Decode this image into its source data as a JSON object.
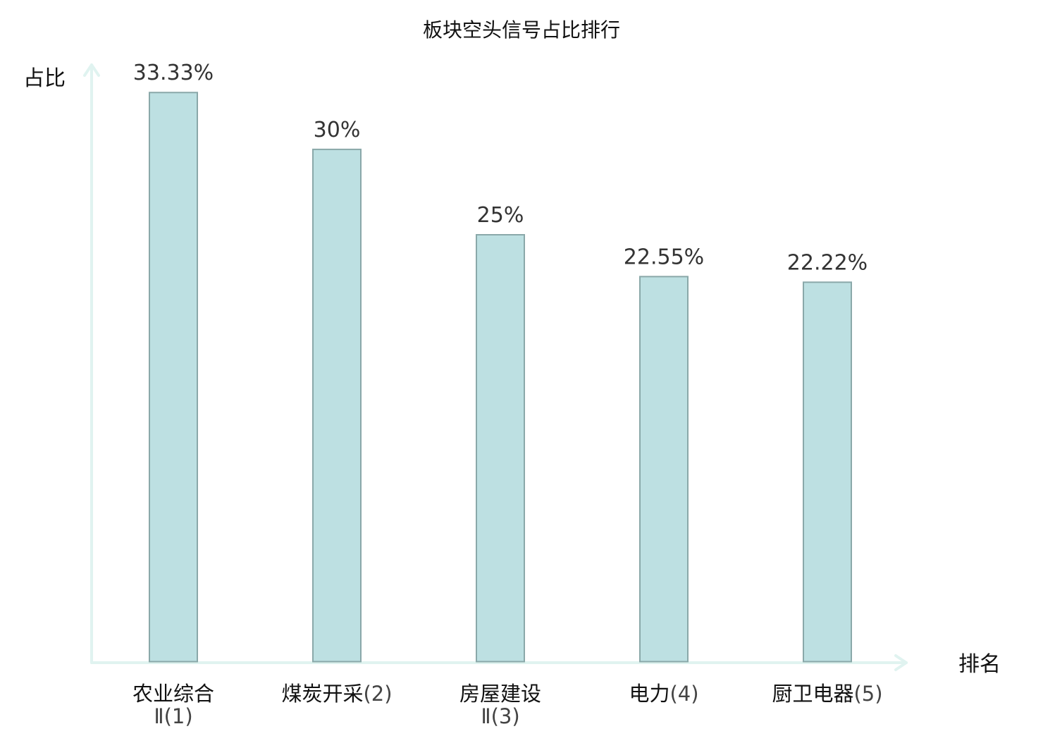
{
  "colors": {
    "bar_fill": "#bde0e2",
    "bar_stroke": "#8aa8a9",
    "axis": "#e0f3f0",
    "highlight": "#e53333",
    "text": "#111111",
    "value_text": "#333333"
  },
  "chart_data": {
    "type": "bar",
    "title": "板块空头信号占比排行",
    "ylabel": "占比",
    "xlabel": "排名",
    "ylim": [
      0,
      35
    ],
    "grid": false,
    "categories": [
      {
        "name": "农业综合",
        "suffix": "",
        "line2": "Ⅱ(1)",
        "highlight": false
      },
      {
        "name": "煤炭开采",
        "suffix": "(2)",
        "line2": "",
        "highlight": false
      },
      {
        "name": "房屋建设",
        "suffix": "",
        "line2": "Ⅱ(3)",
        "highlight": false
      },
      {
        "name": "电力",
        "suffix": "(4)",
        "line2": "",
        "highlight": true
      },
      {
        "name": "厨卫电器",
        "suffix": "(5)",
        "line2": "",
        "highlight": false
      }
    ],
    "values": [
      33.33,
      30,
      25,
      22.55,
      22.22
    ],
    "value_labels": [
      "33.33%",
      "30%",
      "25%",
      "22.55%",
      "22.22%"
    ]
  }
}
